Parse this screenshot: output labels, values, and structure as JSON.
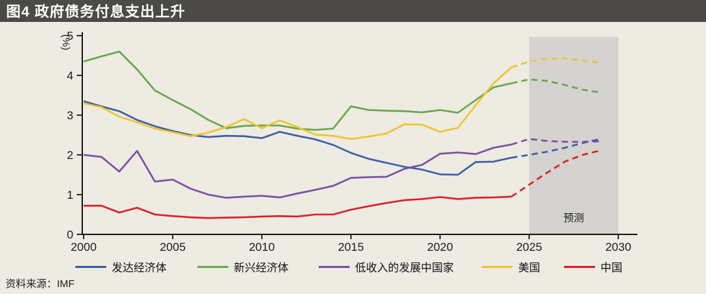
{
  "title_bar": {
    "title": "图4 政府债务付息支出上升"
  },
  "source": {
    "label": "资料来源：IMF"
  },
  "colors": {
    "background": "#edebe2",
    "title_bar_bg": "#4b4a46",
    "title_text": "#ffffff",
    "forecast_band": "#d5d3d0",
    "axis": "#1a1a1a"
  },
  "chart_data": {
    "type": "line",
    "title": "图4 政府债务付息支出上升",
    "xlabel": "",
    "ylabel": "(%)",
    "ylim": [
      0,
      5
    ],
    "xlim": [
      2000,
      2031
    ],
    "grid": false,
    "legend_position": "bottom",
    "yticks": [
      0,
      1,
      2,
      3,
      4,
      5
    ],
    "xticks": [
      2000,
      2005,
      2010,
      2015,
      2020,
      2025,
      2030
    ],
    "forecast_label": "预测",
    "forecast_band": {
      "start": 2025,
      "end": 2030
    },
    "dash_from_year": 2024,
    "x": [
      2000,
      2001,
      2002,
      2003,
      2004,
      2005,
      2006,
      2007,
      2008,
      2009,
      2010,
      2011,
      2012,
      2013,
      2014,
      2015,
      2016,
      2017,
      2018,
      2019,
      2020,
      2021,
      2022,
      2023,
      2024,
      2025,
      2026,
      2027,
      2028,
      2029
    ],
    "series": [
      {
        "name": "发达经济体",
        "color": "#3a5fa5",
        "values": [
          3.35,
          3.22,
          3.1,
          2.88,
          2.72,
          2.6,
          2.5,
          2.45,
          2.48,
          2.47,
          2.42,
          2.58,
          2.48,
          2.39,
          2.25,
          2.05,
          1.9,
          1.8,
          1.7,
          1.63,
          1.51,
          1.5,
          1.82,
          1.83,
          1.93,
          2.0,
          2.08,
          2.18,
          2.3,
          2.4
        ]
      },
      {
        "name": "新兴经济体",
        "color": "#67a74a",
        "values": [
          4.35,
          4.48,
          4.6,
          4.15,
          3.62,
          3.38,
          3.15,
          2.88,
          2.67,
          2.73,
          2.74,
          2.74,
          2.66,
          2.63,
          2.66,
          3.22,
          3.13,
          3.11,
          3.1,
          3.07,
          3.13,
          3.06,
          3.38,
          3.7,
          3.8,
          3.9,
          3.86,
          3.76,
          3.64,
          3.57
        ]
      },
      {
        "name": "低收入的发展中国家",
        "color": "#7c4fa0",
        "values": [
          2.0,
          1.95,
          1.58,
          2.1,
          1.33,
          1.38,
          1.15,
          1.0,
          0.92,
          0.95,
          0.97,
          0.93,
          1.03,
          1.12,
          1.22,
          1.42,
          1.44,
          1.45,
          1.65,
          1.75,
          2.03,
          2.06,
          2.02,
          2.18,
          2.26,
          2.4,
          2.35,
          2.33,
          2.33,
          2.34
        ]
      },
      {
        "name": "美国",
        "color": "#f0c42f",
        "values": [
          3.3,
          3.2,
          2.96,
          2.82,
          2.66,
          2.57,
          2.47,
          2.56,
          2.7,
          2.9,
          2.67,
          2.87,
          2.7,
          2.51,
          2.48,
          2.4,
          2.46,
          2.54,
          2.77,
          2.76,
          2.58,
          2.68,
          3.25,
          3.8,
          4.2,
          4.35,
          4.42,
          4.43,
          4.37,
          4.32
        ]
      },
      {
        "name": "中国",
        "color": "#df1f26",
        "values": [
          0.72,
          0.72,
          0.55,
          0.67,
          0.5,
          0.46,
          0.43,
          0.41,
          0.42,
          0.43,
          0.45,
          0.46,
          0.45,
          0.5,
          0.5,
          0.62,
          0.71,
          0.79,
          0.86,
          0.89,
          0.94,
          0.89,
          0.92,
          0.93,
          0.95,
          1.25,
          1.55,
          1.83,
          2.0,
          2.11
        ]
      }
    ]
  }
}
